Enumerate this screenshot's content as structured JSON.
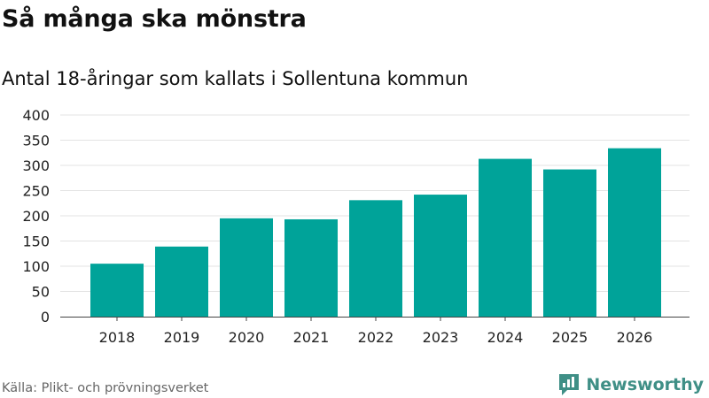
{
  "header": {
    "title": "Så många ska mönstra",
    "subtitle": "Antal 18-åringar som kallats i Sollentuna kommun"
  },
  "footer": {
    "source": "Källa: Plikt- och prövningsverket",
    "brand": "Newsworthy"
  },
  "colors": {
    "bar": "#00a399",
    "grid": "#e3e3e3",
    "axis": "#444444",
    "brand": "#3f8f86"
  },
  "chart_data": {
    "type": "bar",
    "title": "Så många ska mönstra",
    "subtitle": "Antal 18-åringar som kallats i Sollentuna kommun",
    "xlabel": "",
    "ylabel": "",
    "categories": [
      "2018",
      "2019",
      "2020",
      "2021",
      "2022",
      "2023",
      "2024",
      "2025",
      "2026"
    ],
    "values": [
      105,
      139,
      195,
      193,
      231,
      242,
      313,
      292,
      334
    ],
    "ylim": [
      0,
      400
    ],
    "yticks": [
      0,
      50,
      100,
      150,
      200,
      250,
      300,
      350,
      400
    ],
    "grid": true,
    "legend": "none"
  }
}
